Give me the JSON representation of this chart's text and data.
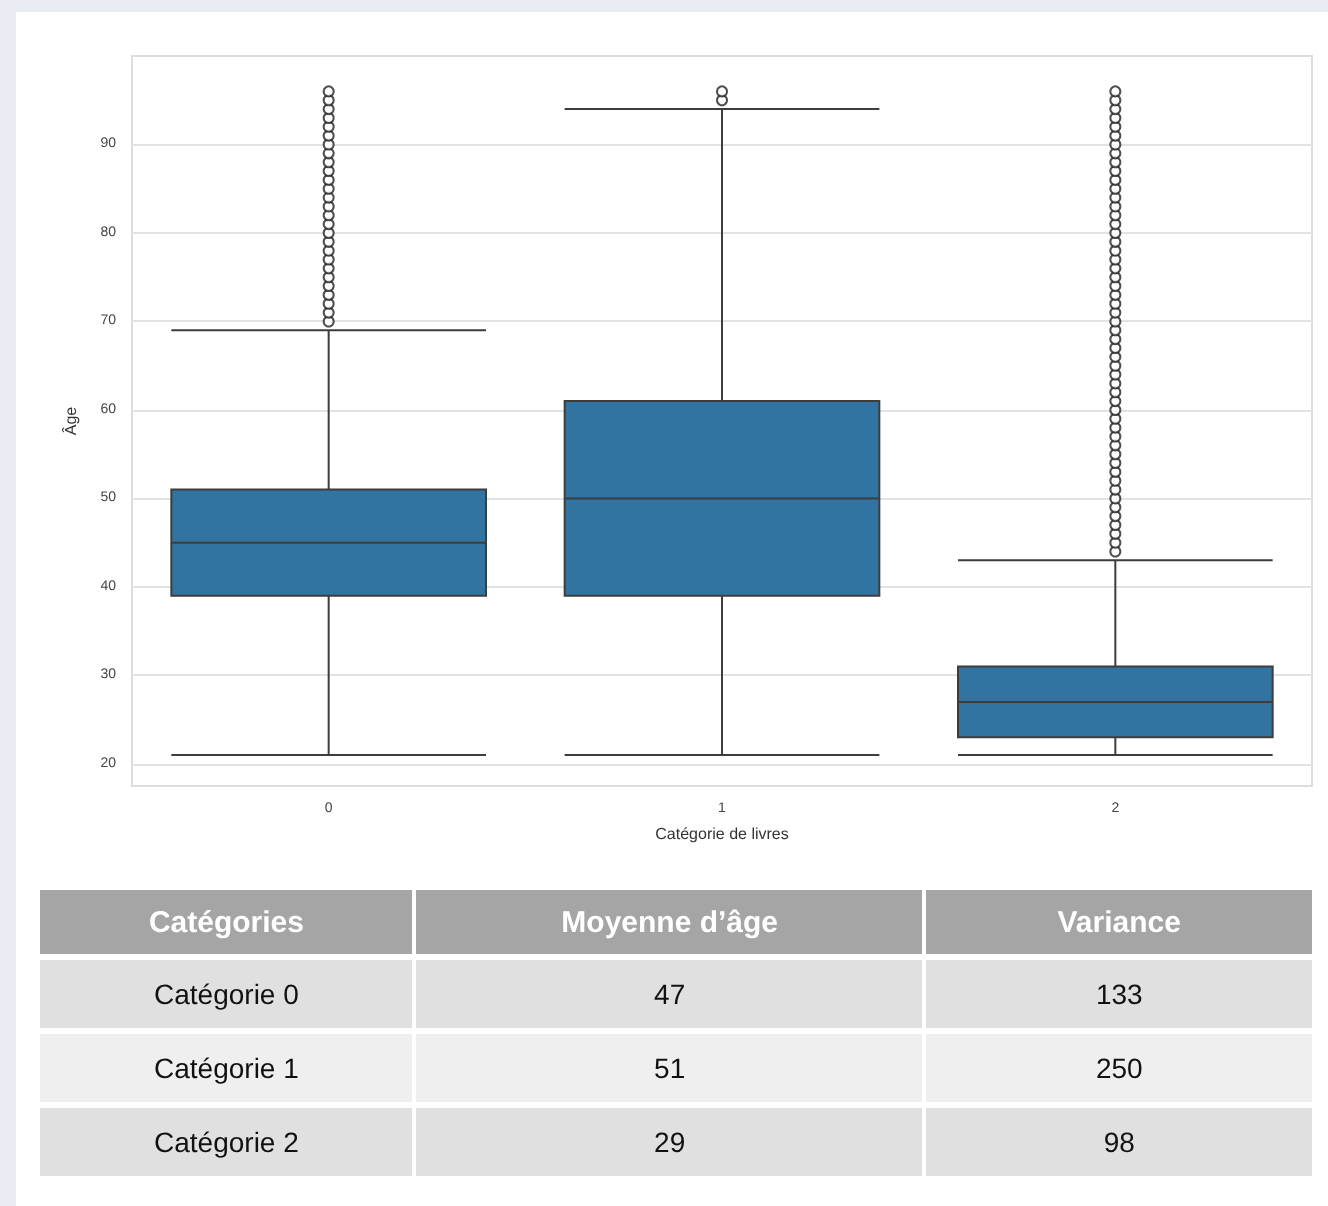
{
  "chart_data": [
    {
      "type": "box",
      "xlabel": "Catégorie de livres",
      "ylabel": "Âge",
      "categories": [
        "0",
        "1",
        "2"
      ],
      "color": "#3274a1",
      "boxes": [
        {
          "low": 21,
          "q1": 39,
          "median": 45,
          "q3": 51,
          "high": 69,
          "outliers": [
            70,
            71,
            72,
            73,
            74,
            75,
            76,
            77,
            78,
            79,
            80,
            81,
            82,
            83,
            84,
            85,
            86,
            87,
            88,
            89,
            90,
            91,
            92,
            93,
            94,
            95,
            96
          ]
        },
        {
          "low": 21,
          "q1": 39,
          "median": 50,
          "q3": 61,
          "high": 94,
          "outliers": [
            95,
            96
          ]
        },
        {
          "low": 21,
          "q1": 23,
          "median": 27,
          "q3": 31,
          "high": 43,
          "outliers": [
            44,
            45,
            46,
            47,
            48,
            49,
            50,
            51,
            52,
            53,
            54,
            55,
            56,
            57,
            58,
            59,
            60,
            61,
            62,
            63,
            64,
            65,
            66,
            67,
            68,
            69,
            70,
            71,
            72,
            73,
            74,
            75,
            76,
            77,
            78,
            79,
            80,
            81,
            82,
            83,
            84,
            85,
            86,
            87,
            88,
            89,
            90,
            91,
            92,
            93,
            94,
            95,
            96
          ]
        }
      ],
      "ylim": [
        17.5,
        100
      ],
      "yticks": [
        20,
        30,
        40,
        50,
        60,
        70,
        80,
        90
      ],
      "grid": "y",
      "marker": "circle"
    },
    {
      "type": "other",
      "data_labels": true,
      "xlabel": "Catégories",
      "categories": [
        "Catégorie 0",
        "Catégorie 1",
        "Catégorie 2"
      ],
      "series": [
        {
          "name": "Moyenne d’âge",
          "colors": [
            "#e0e0e0",
            "#efefef",
            "#e0e0e0"
          ],
          "values": [
            47,
            51,
            29
          ]
        },
        {
          "name": "Variance",
          "colors": [
            "#e0e0e0",
            "#efefef",
            "#e0e0e0"
          ],
          "values": [
            133,
            250,
            98
          ]
        }
      ]
    }
  ]
}
